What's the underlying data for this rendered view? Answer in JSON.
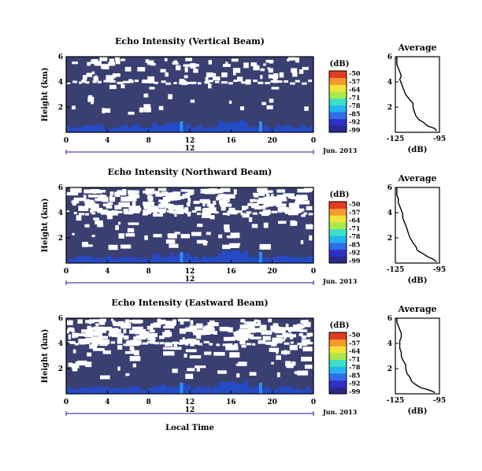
{
  "chart_data": [
    {
      "type": "heatmap",
      "title": "Echo Intensity (Vertical Beam)",
      "ylabel": "Height (km)",
      "yticks": [
        "6",
        "4",
        "2"
      ],
      "xticks": [
        "0",
        "4",
        "8",
        "12",
        "16",
        "20",
        "0"
      ],
      "day_label": "12",
      "date_label": "Jun. 2013",
      "colorbar_title": "(dB)",
      "colorbar_ticks": [
        "-50",
        "-57",
        "-64",
        "-71",
        "-78",
        "-85",
        "-92",
        "-99"
      ],
      "ylim": [
        0,
        6
      ],
      "xlim": [
        0,
        24
      ],
      "clutter_height_km": 4.2,
      "dense_clutter": false,
      "average_profile": {
        "title": "Average",
        "xlabel": "(dB)",
        "xticks": [
          "-125",
          "-95"
        ],
        "yticks": [
          "6",
          "4",
          "2"
        ],
        "xlim": [
          -125,
          -95
        ],
        "ylim": [
          0,
          6
        ],
        "height": [
          0.1,
          0.3,
          0.5,
          0.8,
          1.0,
          1.3,
          1.6,
          2.0,
          2.3,
          2.7,
          3.0,
          3.3,
          3.6,
          3.9,
          4.2,
          4.5,
          4.8,
          5.1,
          5.4,
          5.7,
          6.0
        ],
        "value": [
          -97,
          -98,
          -103,
          -106,
          -109,
          -111,
          -112,
          -113,
          -113,
          -116,
          -118,
          -119,
          -120,
          -121,
          -122,
          -121,
          -122,
          -123,
          -124,
          -124,
          -124
        ]
      }
    },
    {
      "type": "heatmap",
      "title": "Echo Intensity (Northward Beam)",
      "ylabel": "Height (km)",
      "yticks": [
        "6",
        "4",
        "2"
      ],
      "xticks": [
        "0",
        "4",
        "8",
        "12",
        "16",
        "20",
        "0"
      ],
      "day_label": "12",
      "date_label": "Jun. 2013",
      "colorbar_title": "(dB)",
      "colorbar_ticks": [
        "-50",
        "-57",
        "-64",
        "-71",
        "-78",
        "-85",
        "-92",
        "-99"
      ],
      "ylim": [
        0,
        6
      ],
      "xlim": [
        0,
        24
      ],
      "clutter_height_km": 4.2,
      "dense_clutter": true,
      "average_profile": {
        "title": "Average",
        "xlabel": "(dB)",
        "xticks": [
          "-125",
          "-95"
        ],
        "yticks": [
          "6",
          "4",
          "2"
        ],
        "xlim": [
          -125,
          -95
        ],
        "ylim": [
          0,
          6
        ],
        "height": [
          0.1,
          0.3,
          0.5,
          0.8,
          1.0,
          1.3,
          1.6,
          2.0,
          2.3,
          2.7,
          3.0,
          3.3,
          3.6,
          3.9,
          4.2,
          4.5,
          4.8,
          5.1,
          5.4,
          5.7,
          6.0
        ],
        "value": [
          -97,
          -99,
          -103,
          -107,
          -110,
          -111,
          -113,
          -115,
          -116,
          -117,
          -118,
          -119,
          -120,
          -120,
          -121,
          -122,
          -123,
          -123,
          -124,
          -124,
          -124
        ]
      }
    },
    {
      "type": "heatmap",
      "title": "Echo Intensity (Eastward Beam)",
      "ylabel": "Height (km)",
      "yticks": [
        "6",
        "4",
        "2"
      ],
      "xticks": [
        "0",
        "4",
        "8",
        "12",
        "16",
        "20",
        "0"
      ],
      "day_label": "12",
      "date_label": "Jun. 2013",
      "xlabel": "Local Time",
      "colorbar_title": "(dB)",
      "colorbar_ticks": [
        "-50",
        "-57",
        "-64",
        "-71",
        "-78",
        "-85",
        "-92",
        "-99"
      ],
      "ylim": [
        0,
        6
      ],
      "xlim": [
        0,
        24
      ],
      "clutter_height_km": 4.2,
      "dense_clutter": true,
      "average_profile": {
        "title": "Average",
        "xlabel": "(dB)",
        "xticks": [
          "-125",
          "-95"
        ],
        "yticks": [
          "6",
          "4",
          "2"
        ],
        "xlim": [
          -125,
          -95
        ],
        "ylim": [
          0,
          6
        ],
        "height": [
          0.1,
          0.3,
          0.5,
          0.8,
          1.0,
          1.3,
          1.6,
          2.0,
          2.3,
          2.7,
          3.0,
          3.3,
          3.6,
          3.9,
          4.2,
          4.5,
          4.8,
          5.1,
          5.4,
          5.7,
          6.0
        ],
        "value": [
          -98,
          -102,
          -108,
          -112,
          -114,
          -115,
          -117,
          -118,
          -118,
          -120,
          -121,
          -121,
          -122,
          -122,
          -122,
          -121,
          -121,
          -122,
          -123,
          -124,
          -124
        ]
      }
    }
  ],
  "colors": {
    "background_echo": "#3a3f72",
    "strong_echo": "#1f4fe0",
    "colorbar": [
      "#2a2a8c",
      "#3030c8",
      "#2f6ee8",
      "#25b4f0",
      "#3be0c8",
      "#a8e84a",
      "#f4e23a",
      "#f59a2c",
      "#e43a22"
    ]
  }
}
